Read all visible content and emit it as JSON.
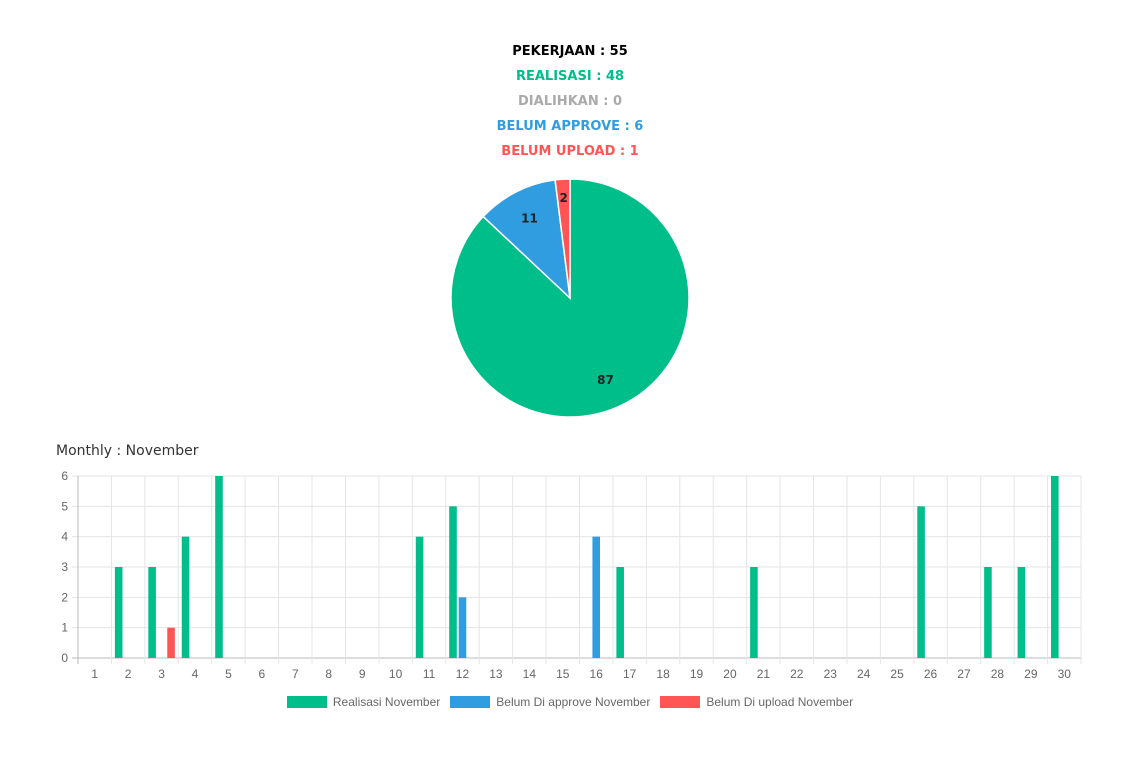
{
  "summary": {
    "pekerjaan": "PEKERJAAN : 55",
    "realisasi": "REALISASI : 48",
    "dialihkan": "DIALIHKAN : 0",
    "belum_approve": "BELUM APPROVE : 6",
    "belum_upload": "BELUM UPLOAD : 1"
  },
  "colors": {
    "pekerjaan": "#000000",
    "realisasi": "#00be8a",
    "dialihkan": "#aaaaaa",
    "belum_approve": "#2f9de0",
    "belum_upload": "#ff5555",
    "grid": "#e5e5e5",
    "tick": "#666666"
  },
  "monthly_title": "Monthly : November",
  "chart_data": [
    {
      "type": "pie",
      "slices": [
        {
          "label": "87",
          "value": 87,
          "color": "#00be8a"
        },
        {
          "label": "11",
          "value": 11,
          "color": "#2f9de0"
        },
        {
          "label": "2",
          "value": 2,
          "color": "#ff5555"
        }
      ]
    },
    {
      "type": "bar",
      "categories": [
        "1",
        "2",
        "3",
        "4",
        "5",
        "6",
        "7",
        "8",
        "9",
        "10",
        "11",
        "12",
        "13",
        "14",
        "15",
        "16",
        "17",
        "18",
        "19",
        "20",
        "21",
        "22",
        "23",
        "24",
        "25",
        "26",
        "27",
        "28",
        "29",
        "30"
      ],
      "ylim": [
        0,
        6
      ],
      "yticks": [
        "0",
        "1",
        "2",
        "3",
        "4",
        "5",
        "6"
      ],
      "grid": true,
      "legend": "bottom",
      "series": [
        {
          "name": "Realisasi November",
          "color": "#00be8a",
          "values": [
            0,
            3,
            3,
            4,
            6,
            0,
            0,
            0,
            0,
            0,
            4,
            5,
            0,
            0,
            0,
            0,
            3,
            0,
            0,
            0,
            3,
            0,
            0,
            0,
            0,
            5,
            0,
            3,
            3,
            6
          ]
        },
        {
          "name": "Belum Di approve November",
          "color": "#2f9de0",
          "values": [
            0,
            0,
            0,
            0,
            0,
            0,
            0,
            0,
            0,
            0,
            0,
            2,
            0,
            0,
            0,
            4,
            0,
            0,
            0,
            0,
            0,
            0,
            0,
            0,
            0,
            0,
            0,
            0,
            0,
            0
          ]
        },
        {
          "name": "Belum Di upload November",
          "color": "#ff5555",
          "values": [
            0,
            0,
            1,
            0,
            0,
            0,
            0,
            0,
            0,
            0,
            0,
            0,
            0,
            0,
            0,
            0,
            0,
            0,
            0,
            0,
            0,
            0,
            0,
            0,
            0,
            0,
            0,
            0,
            0,
            0
          ]
        }
      ]
    }
  ]
}
